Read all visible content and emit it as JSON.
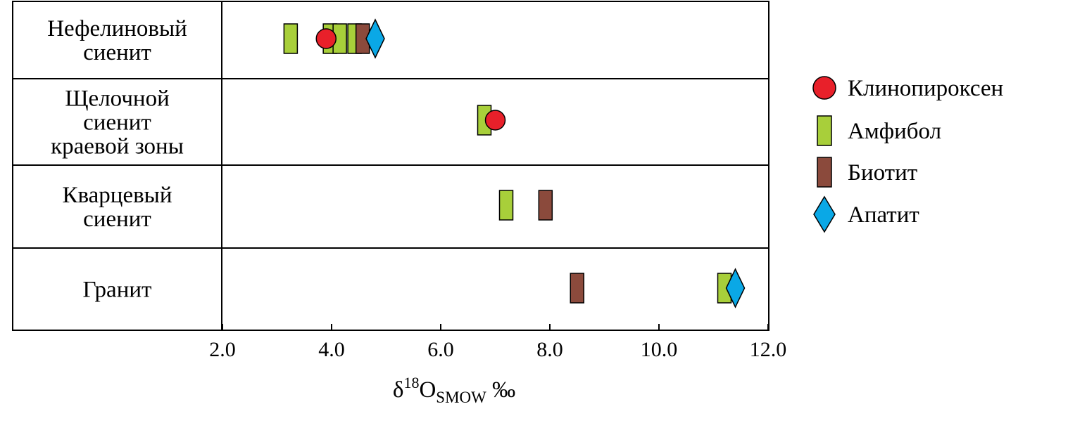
{
  "chart_data": {
    "type": "scatter",
    "xlabel": {
      "main": "δ",
      "sup": "18",
      "element": "O",
      "sub": "SMOW",
      "unit": "‰"
    },
    "xlim": [
      2.0,
      12.0
    ],
    "xticks": [
      "2.0",
      "4.0",
      "6.0",
      "8.0",
      "10.0",
      "12.0"
    ],
    "grid": false,
    "legend_position": "right",
    "categories": [
      {
        "lines": [
          "Нефелиновый",
          "сиенит"
        ]
      },
      {
        "lines": [
          "Щелочной",
          "сиенит",
          "краевой зоны"
        ]
      },
      {
        "lines": [
          "Кварцевый",
          "сиенит"
        ]
      },
      {
        "lines": [
          "Гранит"
        ]
      }
    ],
    "series": [
      {
        "name": "Клинопироксен",
        "marker": "circle",
        "color": "#e8202a",
        "points": [
          {
            "category": 0,
            "x": 3.9
          },
          {
            "category": 1,
            "x": 7.0
          }
        ]
      },
      {
        "name": "Амфибол",
        "marker": "rect",
        "color": "#a8cf3a",
        "points": [
          {
            "category": 0,
            "x": 3.25
          },
          {
            "category": 0,
            "x": 3.97
          },
          {
            "category": 0,
            "x": 4.15
          },
          {
            "category": 0,
            "x": 4.42
          },
          {
            "category": 1,
            "x": 6.8
          },
          {
            "category": 2,
            "x": 7.2
          },
          {
            "category": 3,
            "x": 11.2
          }
        ]
      },
      {
        "name": "Биотит",
        "marker": "rect",
        "color": "#8b4a3c",
        "points": [
          {
            "category": 0,
            "x": 4.57
          },
          {
            "category": 2,
            "x": 7.92
          },
          {
            "category": 3,
            "x": 8.5
          }
        ]
      },
      {
        "name": "Апатит",
        "marker": "diamond",
        "color": "#0aa8e6",
        "points": [
          {
            "category": 0,
            "x": 4.8
          },
          {
            "category": 3,
            "x": 11.4
          }
        ]
      }
    ]
  }
}
